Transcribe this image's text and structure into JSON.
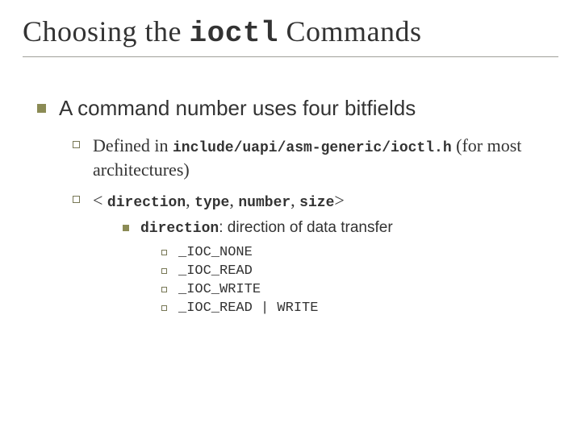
{
  "title": {
    "pre": "Choosing the ",
    "code": "ioctl",
    "post": " Commands"
  },
  "main": {
    "text": "A command number uses four bitfields"
  },
  "sub": [
    {
      "pre": "Defined in ",
      "code": "include/uapi/asm-generic/ioctl.h",
      "post": " (for most architectures)"
    },
    {
      "pre": "< ",
      "code1": "direction",
      "sep1": ", ",
      "code2": "type",
      "sep2": ", ",
      "code3": "number",
      "sep3": ", ",
      "code4": "size",
      "post": ">"
    }
  ],
  "detail": {
    "code": "direction",
    "text": ": direction of data transfer"
  },
  "items": [
    "_IOC_NONE",
    "_IOC_READ",
    "_IOC_WRITE",
    "_IOC_READ | WRITE"
  ],
  "colors": {
    "bullet_fill": "#8b8b55",
    "bullet_border": "#777755",
    "text": "#333333",
    "underline": "#a0a099",
    "background": "#ffffff"
  }
}
